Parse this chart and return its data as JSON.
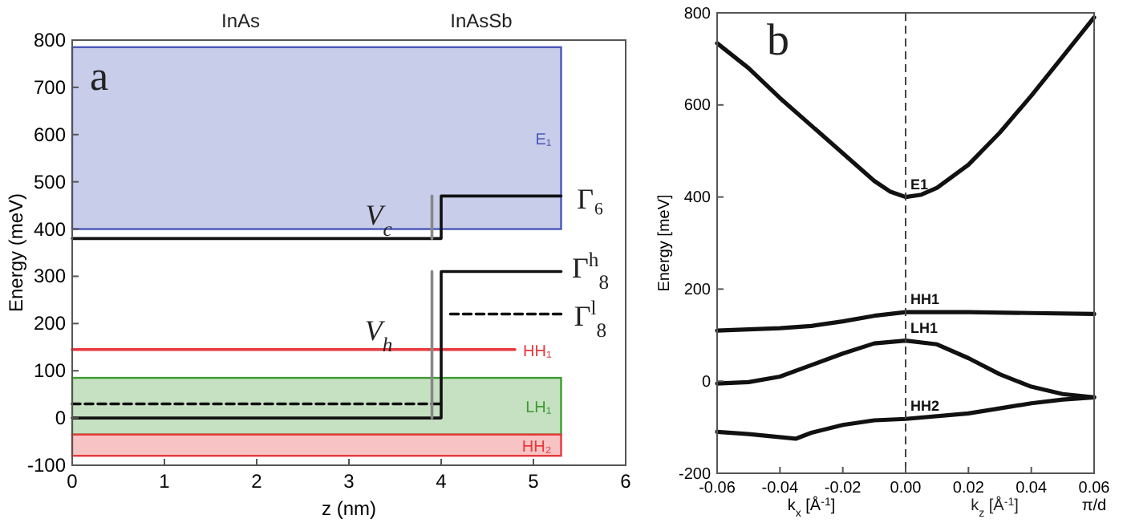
{
  "chart_data": [
    {
      "type": "line",
      "xlabel": "z (nm)",
      "ylabel": "Energy (meV)",
      "xlim": [
        0,
        6
      ],
      "ylim": [
        -100,
        800
      ],
      "xticks": [
        0,
        1,
        2,
        3,
        4,
        5,
        6
      ],
      "yticks": [
        -100,
        0,
        100,
        200,
        300,
        400,
        500,
        600,
        700,
        800
      ],
      "bands": [
        {
          "axis": "y",
          "from": 400,
          "to": 785,
          "label": "E₁",
          "color": "#4a58b8"
        },
        {
          "axis": "y",
          "from": -35,
          "to": 85,
          "label": "LH₁",
          "color": "#3f9a32"
        },
        {
          "axis": "y",
          "from": -80,
          "to": -35,
          "label": "HH₂",
          "color": "#e8383c"
        }
      ],
      "series": [
        {
          "name": "HH₁",
          "color": "#e8383c",
          "x": [
            0,
            4.8
          ],
          "values": [
            145,
            145
          ]
        },
        {
          "color": "#111111",
          "x": [
            0,
            4,
            4,
            5.3
          ],
          "values": [
            380,
            380,
            470,
            470
          ]
        },
        {
          "color": "#111111",
          "x": [
            0,
            4,
            4,
            5.3
          ],
          "values": [
            0,
            0,
            310,
            310
          ]
        },
        {
          "color": "#111111",
          "line_style": "dashed",
          "x": [
            0,
            4
          ],
          "values": [
            30,
            30
          ]
        },
        {
          "color": "#111111",
          "line_style": "dashed",
          "x": [
            4.1,
            5.3
          ],
          "values": [
            220,
            220
          ]
        },
        {
          "color": "#888888",
          "x": [
            3.9,
            3.9
          ],
          "values": [
            380,
            470
          ]
        },
        {
          "color": "#888888",
          "x": [
            3.9,
            3.9
          ],
          "values": [
            0,
            310
          ]
        }
      ],
      "annotations": [
        "a",
        "InAs",
        "InAsSb",
        "V$_{c}$",
        "V$_{h}$",
        "Γ₆",
        "Γ$^{h}$$_{8}$",
        "Γ$^{l}$$_{8}$"
      ]
    },
    {
      "type": "line",
      "xlabel": "k$_{x}$ [Å$^{-1}$]",
      "ylabel": "Energy [meV]",
      "xlim": [
        -0.06,
        0.06
      ],
      "ylim": [
        -200,
        800
      ],
      "xticks": [
        {
          "value": -0.06,
          "label": "-0.06"
        },
        {
          "value": -0.04,
          "label": "-0.04"
        },
        {
          "value": -0.02,
          "label": "-0.02"
        },
        {
          "value": 0,
          "label": "0.00"
        },
        {
          "value": 0.02,
          "label": "0.02"
        },
        {
          "value": 0.04,
          "label": "0.04"
        },
        {
          "value": 0.06,
          "label": "0.06\nπ/d"
        }
      ],
      "yticks": [
        -200,
        0,
        200,
        400,
        600,
        800
      ],
      "ref_lines": [
        {
          "axis": "x",
          "value": 0,
          "line_style": "dashed",
          "color": "#444444"
        }
      ],
      "series": [
        {
          "name": "E1",
          "color": "#111111",
          "x": [
            -0.06,
            -0.05,
            -0.04,
            -0.03,
            -0.02,
            -0.01,
            -0.005,
            0,
            0.005,
            0.01,
            0.02,
            0.03,
            0.04,
            0.05,
            0.06
          ],
          "values": [
            734,
            680,
            615,
            555,
            495,
            435,
            412,
            400,
            405,
            420,
            470,
            540,
            620,
            705,
            790
          ]
        },
        {
          "name": "HH1",
          "color": "#111111",
          "x": [
            -0.06,
            -0.04,
            -0.03,
            -0.02,
            -0.01,
            0,
            0.02,
            0.04,
            0.06
          ],
          "values": [
            110,
            115,
            120,
            130,
            142,
            150,
            150,
            148,
            146
          ]
        },
        {
          "name": "LH1",
          "color": "#111111",
          "x": [
            -0.06,
            -0.05,
            -0.04,
            -0.03,
            -0.02,
            -0.01,
            0,
            0.01,
            0.02,
            0.03,
            0.04,
            0.05,
            0.06
          ],
          "values": [
            -5,
            -2,
            10,
            35,
            60,
            82,
            88,
            80,
            50,
            15,
            -12,
            -28,
            -35
          ]
        },
        {
          "name": "HH2",
          "color": "#111111",
          "x": [
            -0.06,
            -0.05,
            -0.035,
            -0.03,
            -0.02,
            -0.01,
            0,
            0.02,
            0.04,
            0.05,
            0.06
          ],
          "values": [
            -110,
            -115,
            -125,
            -112,
            -95,
            -85,
            -82,
            -70,
            -48,
            -40,
            -35
          ]
        }
      ],
      "annotations": [
        "b",
        "k$_{z}$ [Å$^{-1}$]"
      ]
    }
  ]
}
